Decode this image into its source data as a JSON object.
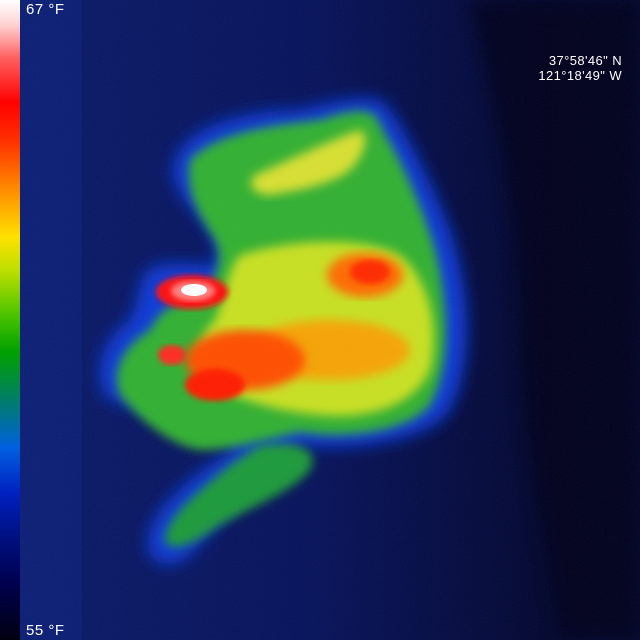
{
  "scale": {
    "max_label": "67 °F",
    "min_label": "55 °F"
  },
  "gps": {
    "latitude": "37°58'46\" N",
    "longitude": "121°18'49\" W"
  },
  "palette": {
    "hot": "#ffffff",
    "warm": "#ff0000",
    "mid": "#ffe000",
    "cool": "#00a000",
    "cold": "#0030d0",
    "background": "#050a3a"
  }
}
